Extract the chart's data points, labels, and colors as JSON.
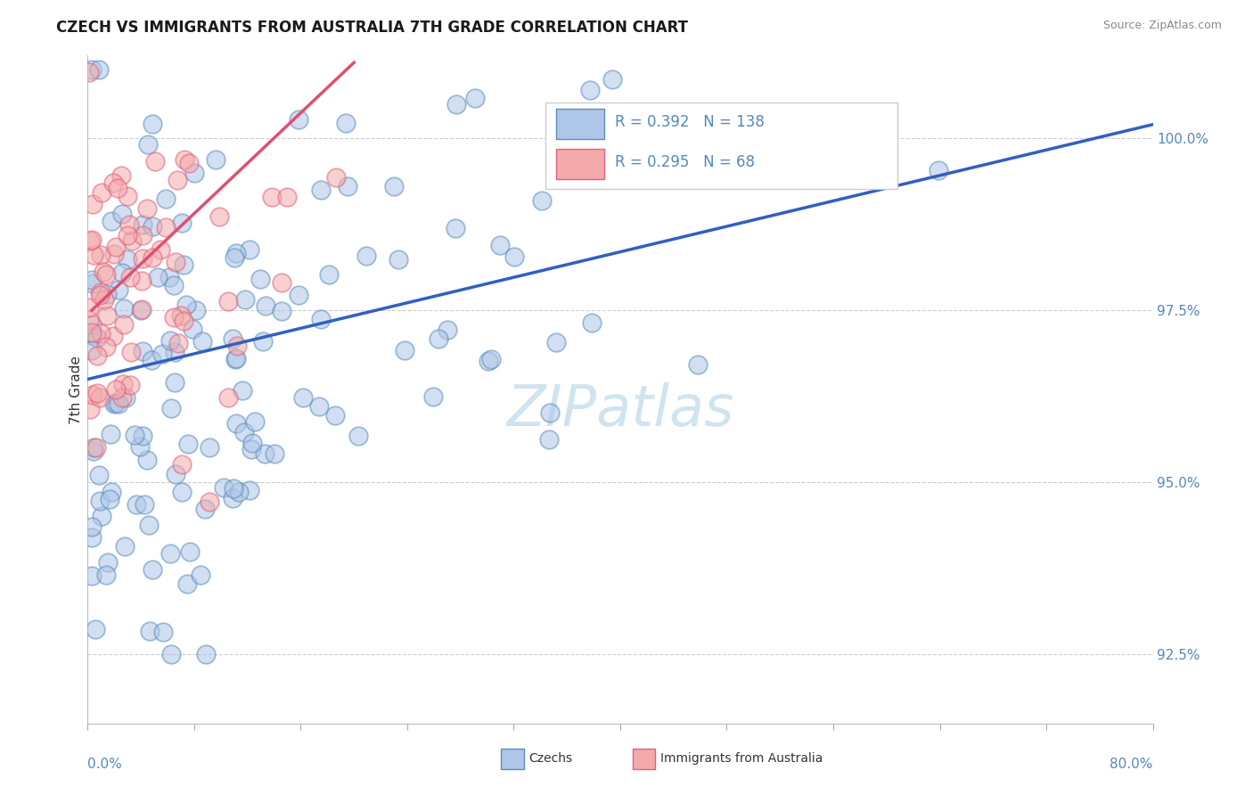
{
  "title": "CZECH VS IMMIGRANTS FROM AUSTRALIA 7TH GRADE CORRELATION CHART",
  "source_text": "Source: ZipAtlas.com",
  "ylabel": "7th Grade",
  "r_blue": 0.392,
  "n_blue": 138,
  "r_pink": 0.295,
  "n_pink": 68,
  "x_range": [
    0.0,
    80.0
  ],
  "y_range": [
    91.5,
    101.2
  ],
  "y_ticks": [
    92.5,
    95.0,
    97.5,
    100.0
  ],
  "blue_face_color": "#AEC6E8",
  "blue_edge_color": "#5B8DB8",
  "pink_face_color": "#F4AAAA",
  "pink_edge_color": "#E06080",
  "blue_line_color": "#3060C0",
  "pink_line_color": "#E05070",
  "grid_color": "#CCCCCC",
  "tick_color": "#5588BB",
  "watermark_color": "#D0E4F0",
  "background_color": "#FFFFFF",
  "legend_czechs": "Czechs",
  "legend_immigrants": "Immigrants from Australia",
  "blue_line_x0": 0.0,
  "blue_line_y0": 96.5,
  "blue_line_x1": 80.0,
  "blue_line_y1": 100.2,
  "pink_line_x0": 0.3,
  "pink_line_y0": 97.5,
  "pink_line_x1": 20.0,
  "pink_line_y1": 101.1,
  "seed_blue": 12,
  "seed_pink": 99
}
